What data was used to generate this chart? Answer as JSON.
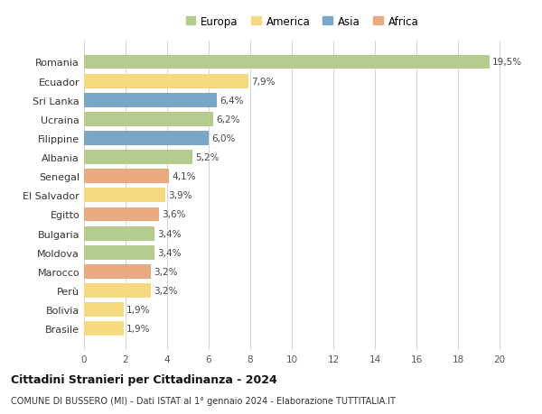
{
  "countries": [
    "Romania",
    "Ecuador",
    "Sri Lanka",
    "Ucraina",
    "Filippine",
    "Albania",
    "Senegal",
    "El Salvador",
    "Egitto",
    "Bulgaria",
    "Moldova",
    "Marocco",
    "Perù",
    "Bolivia",
    "Brasile"
  ],
  "values": [
    19.5,
    7.9,
    6.4,
    6.2,
    6.0,
    5.2,
    4.1,
    3.9,
    3.6,
    3.4,
    3.4,
    3.2,
    3.2,
    1.9,
    1.9
  ],
  "labels": [
    "19,5%",
    "7,9%",
    "6,4%",
    "6,2%",
    "6,0%",
    "5,2%",
    "4,1%",
    "3,9%",
    "3,6%",
    "3,4%",
    "3,4%",
    "3,2%",
    "3,2%",
    "1,9%",
    "1,9%"
  ],
  "continents": [
    "Europa",
    "America",
    "Asia",
    "Europa",
    "Asia",
    "Europa",
    "Africa",
    "America",
    "Africa",
    "Europa",
    "Europa",
    "Africa",
    "America",
    "America",
    "America"
  ],
  "colors": {
    "Europa": "#b5cc8e",
    "America": "#f5d97e",
    "Asia": "#7ba7c7",
    "Africa": "#e8aa7e"
  },
  "legend_order": [
    "Europa",
    "America",
    "Asia",
    "Africa"
  ],
  "xlim": [
    0,
    21
  ],
  "xticks": [
    0,
    2,
    4,
    6,
    8,
    10,
    12,
    14,
    16,
    18,
    20
  ],
  "title": "Cittadini Stranieri per Cittadinanza - 2024",
  "subtitle": "COMUNE DI BUSSERO (MI) - Dati ISTAT al 1° gennaio 2024 - Elaborazione TUTTITALIA.IT",
  "background_color": "#ffffff",
  "grid_color": "#d5d5d5",
  "bar_height": 0.75
}
